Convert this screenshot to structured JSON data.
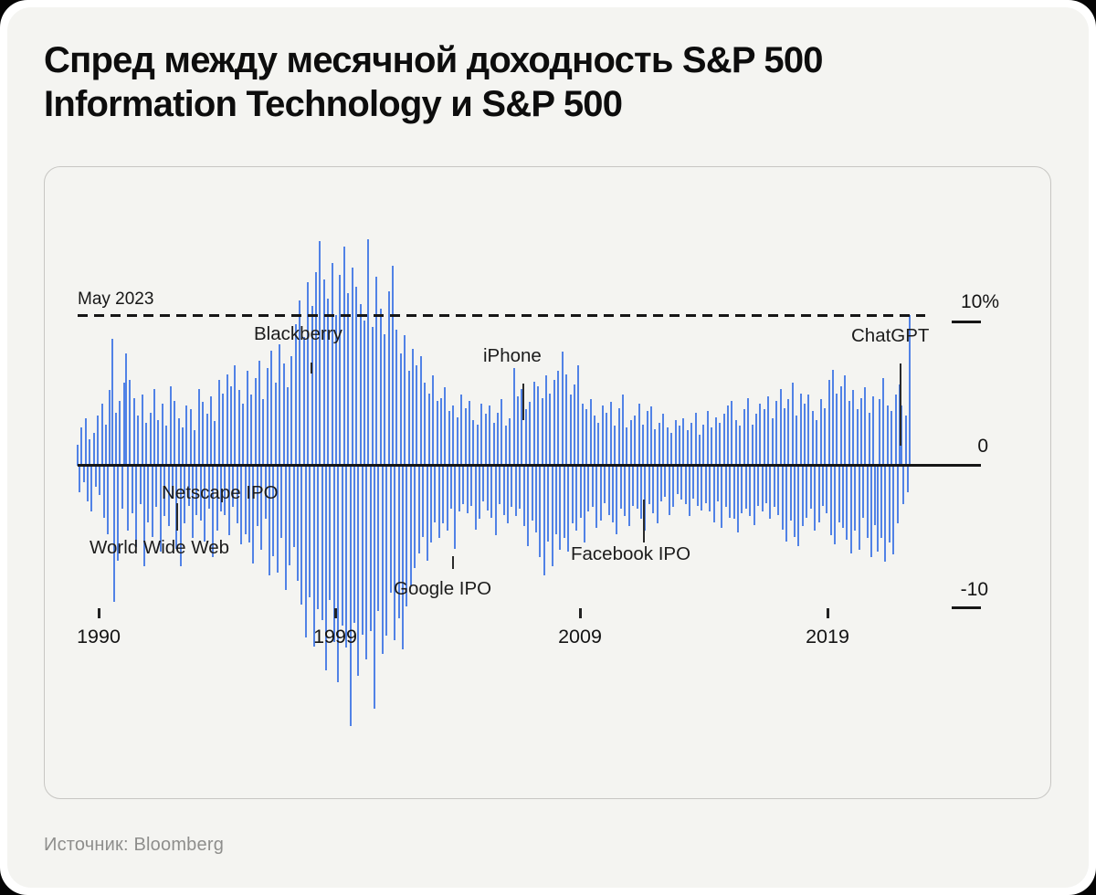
{
  "header": {
    "title": "Спред между месячной доходность S&P 500 Information Technology и S&P 500"
  },
  "footer": {
    "source": "Источник: Bloomberg"
  },
  "chart_data": {
    "type": "bar",
    "title": "Спред между месячной доходность S&P 500 Information Technology и S&P 500",
    "unit": "%",
    "x_start": "1989-01",
    "x_end": "2023-05",
    "ylim": [
      -20,
      17
    ],
    "grid": false,
    "bar_color": "#5182e6",
    "ink_color": "#161616",
    "y_tick_labels": [
      "10%",
      "0",
      "-10"
    ],
    "x_tick_labels": [
      "1990",
      "1999",
      "2009",
      "2019"
    ],
    "reference_line": {
      "label": "May 2023",
      "value": 10
    },
    "annotations": {
      "www": "World Wide Web",
      "netscape": "Netscape IPO",
      "blackberry": "Blackberry",
      "google": "Google IPO",
      "iphone": "iPhone",
      "facebook": "Facebook IPO",
      "chatgpt": "ChatGPT"
    },
    "values": [
      1.4,
      -1.8,
      2.6,
      -1.1,
      3.2,
      -2.4,
      1.8,
      -3.1,
      2.2,
      -1.4,
      3.4,
      -2.0,
      4.2,
      -3.5,
      2.8,
      -4.6,
      5.1,
      8.6,
      -9.2,
      3.6,
      -6.4,
      4.4,
      -2.9,
      5.6,
      7.6,
      -4.4,
      5.8,
      -3.2,
      4.6,
      -5.5,
      3.4,
      -2.6,
      4.8,
      -6.8,
      2.9,
      -3.8,
      3.6,
      -4.8,
      5.2,
      -2.8,
      3.1,
      -5.8,
      4.2,
      -3.4,
      2.7,
      -4.1,
      5.4,
      -2.2,
      4.4,
      -5.6,
      3.2,
      -6.8,
      2.6,
      -3.9,
      4.1,
      -2.7,
      3.8,
      -4.9,
      2.4,
      -3.3,
      5.2,
      -3.7,
      4.3,
      -5.1,
      3.5,
      -2.9,
      4.7,
      -6.2,
      3.0,
      -4.4,
      5.8,
      -3.1,
      4.9,
      -3.3,
      6.2,
      -4.7,
      5.4,
      -2.8,
      6.8,
      -3.9,
      5.1,
      -5.3,
      4.2,
      -4.6,
      6.4,
      -5.2,
      4.8,
      -6.6,
      5.9,
      -4.1,
      7.1,
      -5.7,
      4.5,
      -3.6,
      6.6,
      -7.4,
      7.8,
      -6.1,
      5.6,
      -7.2,
      8.2,
      -4.9,
      6.9,
      -8.4,
      5.3,
      -6.7,
      7.4,
      -5.5,
      9.6,
      -7.8,
      11.2,
      -9.4,
      8.7,
      -11.6,
      12.4,
      -8.9,
      10.8,
      -12.2,
      13.1,
      -9.7,
      15.2,
      -10.4,
      12.6,
      -13.8,
      11.3,
      -9.1,
      13.7,
      -11.9,
      10.2,
      -14.6,
      12.9,
      -10.8,
      14.8,
      -12.3,
      11.7,
      -17.6,
      13.4,
      -10.6,
      12.1,
      -14.2,
      10.9,
      -11.4,
      9.8,
      -13.1,
      15.3,
      -11.2,
      9.4,
      -16.4,
      12.8,
      -9.8,
      10.6,
      -12.7,
      8.9,
      -11.5,
      11.8,
      -8.6,
      13.5,
      -11.8,
      9.2,
      -10.3,
      7.6,
      -12.4,
      8.8,
      -9.5,
      6.4,
      -8.1,
      7.9,
      -6.9,
      6.8,
      -5.9,
      7.4,
      -4.8,
      5.6,
      -6.4,
      4.9,
      -5.2,
      6.1,
      -3.8,
      4.4,
      -4.9,
      4.6,
      -3.9,
      5.3,
      -4.4,
      3.7,
      -2.9,
      4.1,
      -5.6,
      3.3,
      -3.1,
      4.8,
      -2.6,
      3.9,
      -3.2,
      4.4,
      -2.7,
      3.1,
      -4.3,
      2.8,
      -3.6,
      4.2,
      -2.4,
      3.5,
      -3.0,
      4.1,
      -3.5,
      2.9,
      -4.7,
      3.6,
      -2.6,
      4.5,
      -3.3,
      2.7,
      -3.9,
      3.2,
      -2.8,
      6.6,
      -3.4,
      4.7,
      -2.9,
      5.2,
      -4.1,
      3.8,
      -5.4,
      4.3,
      -3.7,
      5.7,
      -4.5,
      5.4,
      -6.2,
      4.6,
      -7.4,
      6.1,
      -5.1,
      4.9,
      -6.8,
      5.8,
      -4.6,
      6.4,
      -5.7,
      7.7,
      -4.9,
      6.2,
      -5.8,
      4.8,
      -3.9,
      5.5,
      -4.4,
      6.8,
      -3.5,
      4.2,
      -5.2,
      3.8,
      -3.1,
      4.5,
      -2.8,
      3.4,
      -4.2,
      2.9,
      -3.7,
      4.1,
      -2.5,
      3.6,
      -3.3,
      4.3,
      -3.8,
      2.7,
      -4.6,
      3.9,
      -2.9,
      4.8,
      -3.4,
      2.6,
      -4.1,
      3.1,
      -2.7,
      3.4,
      -2.9,
      4.2,
      -3.6,
      2.8,
      -4.4,
      3.7,
      -2.6,
      4.0,
      -3.2,
      2.5,
      -3.9,
      2.9,
      -2.4,
      3.5,
      -2.1,
      2.6,
      -3.3,
      2.2,
      -2.8,
      3.1,
      -1.9,
      2.7,
      -2.3,
      3.2,
      -2.6,
      2.4,
      -3.4,
      2.9,
      -2.2,
      3.6,
      -2.7,
      2.1,
      -3.0,
      2.8,
      -2.5,
      3.7,
      -3.1,
      2.6,
      -3.8,
      3.3,
      -2.4,
      2.9,
      -4.2,
      3.5,
      -2.8,
      4.1,
      -3.5,
      4.4,
      -3.6,
      3.1,
      -4.5,
      2.7,
      -3.2,
      3.8,
      -2.9,
      4.6,
      -3.4,
      2.8,
      -4.0,
      3.5,
      -2.7,
      4.2,
      -3.1,
      3.8,
      -2.5,
      4.7,
      -3.6,
      3.2,
      -2.8,
      4.4,
      -3.3,
      5.2,
      -4.3,
      3.9,
      -5.1,
      4.5,
      -3.7,
      5.6,
      -4.8,
      3.4,
      -5.4,
      4.9,
      -4.1,
      4.2,
      -3.5,
      4.8,
      -2.9,
      3.7,
      -4.4,
      3.1,
      -3.8,
      4.5,
      -2.7,
      3.9,
      -3.2,
      5.8,
      -4.7,
      6.5,
      -5.3,
      4.9,
      -3.8,
      5.4,
      -4.2,
      6.1,
      -5.0,
      4.4,
      -5.9,
      5.1,
      -4.4,
      3.8,
      -5.7,
      4.6,
      -3.5,
      5.3,
      -4.9,
      3.6,
      -6.2,
      4.7,
      -4.0,
      -5.8,
      4.5,
      -4.9,
      5.9,
      -6.5,
      4.1,
      -5.2,
      3.7,
      -6.0,
      4.8,
      -3.9,
      5.5,
      4.1,
      -2.6,
      3.4,
      -1.8,
      10.2
    ]
  }
}
